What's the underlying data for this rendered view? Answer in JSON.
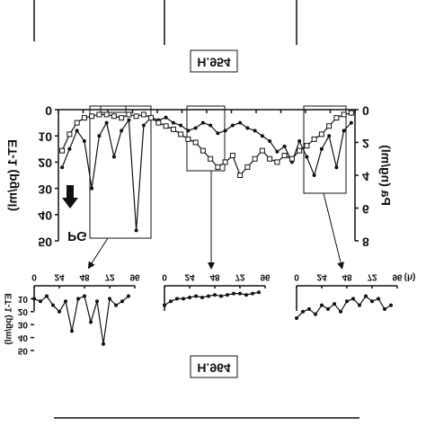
{
  "panel_labels": [
    "H.954",
    "H.964"
  ],
  "chart_data": [
    {
      "type": "line",
      "y_label": "ET-1 (pg/ml)",
      "y2_label": "Pa (ng/ml)",
      "annotation": "PG",
      "ylim": [
        0,
        50
      ],
      "yticks": [
        0,
        10,
        20,
        30,
        40,
        50
      ],
      "y2lim": [
        0,
        8
      ],
      "y2ticks": [
        0,
        2,
        4,
        6,
        8
      ],
      "series": [
        {
          "color": "#111111",
          "marker": "filled",
          "values": [
            22,
            15,
            8,
            12,
            30,
            10,
            5,
            18,
            8,
            4,
            46,
            6,
            3,
            4,
            3,
            5,
            6,
            8,
            7,
            5,
            6,
            9,
            8,
            6,
            5,
            7,
            8,
            10,
            12,
            16,
            14,
            20,
            12,
            18,
            25,
            15,
            10,
            22,
            8,
            5
          ]
        },
        {
          "color": "#111111",
          "marker": "open",
          "axis": "y2",
          "values": [
            2.5,
            1.5,
            0.8,
            0.5,
            0.4,
            0.3,
            0.3,
            0.4,
            0.5,
            0.3,
            0.4,
            0.3,
            0.5,
            0.8,
            1,
            1.2,
            1.5,
            1.8,
            2,
            2.5,
            3,
            3.5,
            3.2,
            2.8,
            4,
            3.5,
            3,
            2.5,
            3,
            3.2,
            2.8,
            3,
            2.5,
            2.2,
            1.8,
            1.5,
            1,
            0.5,
            0.3,
            0.2
          ]
        }
      ]
    },
    {
      "type": "line",
      "y_label": "ET-1 (pg/ml)",
      "xlim": [
        0,
        96
      ],
      "xticks": [
        0,
        24,
        48,
        72,
        96
      ],
      "ylim": [
        0,
        50
      ],
      "yticks": [
        10,
        20,
        30,
        40,
        50
      ],
      "x": [
        0,
        6,
        12,
        18,
        24,
        30,
        36,
        42,
        48,
        54,
        60,
        66,
        72,
        78,
        84,
        90
      ],
      "series": [
        {
          "color": "#111111",
          "values": [
            10,
            12,
            8,
            15,
            20,
            12,
            35,
            10,
            8,
            28,
            12,
            45,
            10,
            15,
            12,
            8
          ]
        }
      ]
    },
    {
      "type": "line",
      "xlim": [
        0,
        96
      ],
      "xticks": [
        0,
        24,
        48,
        72,
        96
      ],
      "ylim": [
        0,
        50
      ],
      "x": [
        0,
        6,
        12,
        18,
        24,
        30,
        36,
        42,
        48,
        54,
        60,
        66,
        72,
        78,
        84,
        90
      ],
      "series": [
        {
          "color": "#111111",
          "values": [
            15,
            12,
            10,
            10,
            9,
            8,
            9,
            8,
            7,
            8,
            7,
            6,
            6,
            7,
            6,
            5
          ]
        }
      ]
    },
    {
      "type": "line",
      "x_label": "(h)",
      "xlim": [
        0,
        96
      ],
      "xticks": [
        0,
        24,
        48,
        72,
        96
      ],
      "ylim": [
        0,
        50
      ],
      "x": [
        0,
        6,
        12,
        18,
        24,
        30,
        36,
        42,
        48,
        54,
        60,
        66,
        72,
        78,
        84,
        90
      ],
      "series": [
        {
          "color": "#111111",
          "values": [
            25,
            20,
            18,
            22,
            15,
            18,
            14,
            20,
            12,
            10,
            15,
            8,
            12,
            10,
            18,
            15
          ]
        }
      ]
    }
  ]
}
